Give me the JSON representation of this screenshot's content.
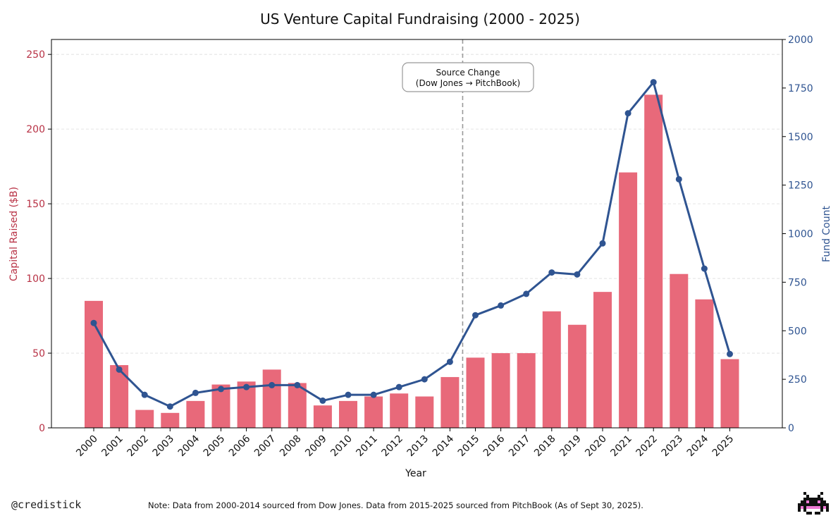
{
  "chart_data": {
    "type": "bar+line",
    "title": "US Venture Capital Fundraising (2000 - 2025)",
    "xlabel": "Year",
    "ylabel_left": "Capital Raised ($B)",
    "ylabel_right": "Fund Count",
    "ylim_left": [
      0,
      260
    ],
    "ylim_right": [
      0,
      2000
    ],
    "yticks_left": [
      0,
      50,
      100,
      150,
      200,
      250
    ],
    "yticks_right": [
      0,
      250,
      500,
      750,
      1000,
      1250,
      1500,
      1750,
      2000
    ],
    "grid": true,
    "categories": [
      "2000",
      "2001",
      "2002",
      "2003",
      "2004",
      "2005",
      "2006",
      "2007",
      "2008",
      "2009",
      "2010",
      "2011",
      "2012",
      "2013",
      "2014",
      "2015",
      "2016",
      "2017",
      "2018",
      "2019",
      "2020",
      "2021",
      "2022",
      "2023",
      "2024",
      "2025"
    ],
    "series": [
      {
        "name": "Capital Raised ($B)",
        "type": "bar",
        "axis": "left",
        "color": "#e8697a",
        "values": [
          85,
          42,
          12,
          10,
          18,
          29,
          31,
          39,
          30,
          15,
          18,
          21,
          23,
          21,
          34,
          47,
          50,
          50,
          78,
          69,
          91,
          171,
          223,
          103,
          86,
          46
        ]
      },
      {
        "name": "Fund Count",
        "type": "line",
        "axis": "right",
        "color": "#2f5491",
        "values": [
          540,
          300,
          170,
          110,
          180,
          200,
          210,
          220,
          220,
          140,
          170,
          170,
          210,
          250,
          340,
          580,
          630,
          690,
          800,
          790,
          950,
          1620,
          1780,
          1280,
          820,
          380
        ]
      }
    ],
    "annotation": {
      "after_category": "2014",
      "line1": "Source Change",
      "line2": "(Dow Jones → PitchBook)"
    }
  },
  "colors": {
    "left_axis": "#b83245",
    "right_axis": "#2f5491",
    "bar": "#e8697a",
    "line": "#2f5491",
    "divider": "#999999"
  },
  "footer": {
    "handle": "@credistick",
    "note": "Note: Data from 2000-2014 sourced from Dow Jones. Data from 2015-2025 sourced from PitchBook (As of Sept 30, 2025)."
  }
}
